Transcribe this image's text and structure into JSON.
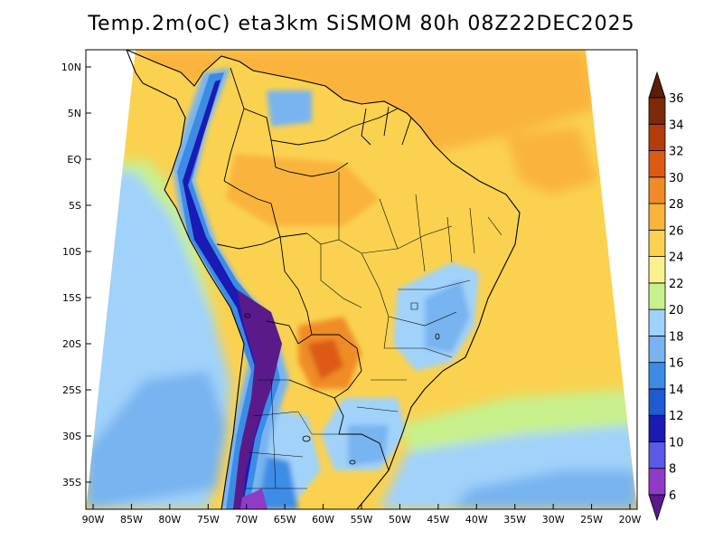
{
  "title": "Temp.2m(oC) eta3km SiSMOM 80h 08Z22DEC2025",
  "map": {
    "variable": "2 m air temperature",
    "units": "oC",
    "model": "eta3km SiSMOM",
    "forecast_hour": "80h",
    "valid_time": "08Z22DEC2025",
    "lon_labels": [
      "90W",
      "85W",
      "80W",
      "75W",
      "70W",
      "65W",
      "60W",
      "55W",
      "50W",
      "45W",
      "40W",
      "35W",
      "30W",
      "25W",
      "20W"
    ],
    "lat_labels": [
      "10N",
      "5N",
      "EQ",
      "5S",
      "10S",
      "15S",
      "20S",
      "25S",
      "30S",
      "35S"
    ]
  },
  "colorbar": {
    "levels": [
      "6",
      "8",
      "10",
      "12",
      "14",
      "16",
      "18",
      "20",
      "22",
      "24",
      "26",
      "28",
      "30",
      "32",
      "34",
      "36"
    ],
    "colors": [
      "#5a1a8a",
      "#8e3cc8",
      "#5a5ae6",
      "#1a1ab4",
      "#1e5ad2",
      "#3c8ce6",
      "#78b4f0",
      "#a0d2fa",
      "#c8f08c",
      "#faf08c",
      "#fad250",
      "#fab43c",
      "#f08c28",
      "#dc5a14",
      "#b43c0a",
      "#7d2a0a",
      "#5a1e0a"
    ]
  }
}
